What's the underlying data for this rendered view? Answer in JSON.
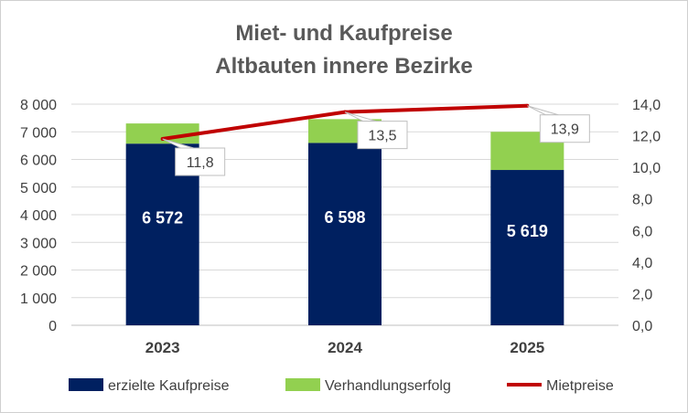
{
  "chart_data": {
    "type": "bar",
    "title_lines": [
      "Miet- und Kaufpreise",
      "Altbauten innere Bezirke"
    ],
    "categories": [
      "2023",
      "2024",
      "2025"
    ],
    "series": [
      {
        "name": "erzielte Kaufpreise",
        "type": "bar",
        "stacked": true,
        "axis": "left",
        "values": [
          6572,
          6598,
          5619
        ],
        "labels": [
          "6 572",
          "6 598",
          "5 619"
        ],
        "color": "#002060"
      },
      {
        "name": "Verhandlungserfolg",
        "type": "bar",
        "stacked": true,
        "axis": "left",
        "values": [
          730,
          860,
          1380
        ],
        "color": "#92D050"
      },
      {
        "name": "Mietpreise",
        "type": "line",
        "axis": "right",
        "values": [
          11.8,
          13.5,
          13.9
        ],
        "labels": [
          "11,8",
          "13,5",
          "13,9"
        ],
        "color": "#C00000"
      }
    ],
    "y_left": {
      "min": 0,
      "max": 8000,
      "ticks": [
        0,
        1000,
        2000,
        3000,
        4000,
        5000,
        6000,
        7000,
        8000
      ],
      "tick_labels": [
        "0",
        "1 000",
        "2 000",
        "3 000",
        "4 000",
        "5 000",
        "6 000",
        "7 000",
        "8 000"
      ]
    },
    "y_right": {
      "min": 0,
      "max": 14,
      "ticks": [
        0,
        2,
        4,
        6,
        8,
        10,
        12,
        14
      ],
      "tick_labels": [
        "0,0",
        "2,0",
        "4,0",
        "6,0",
        "8,0",
        "10,0",
        "12,0",
        "14,0"
      ]
    },
    "grid": true,
    "legend_position": "bottom"
  }
}
